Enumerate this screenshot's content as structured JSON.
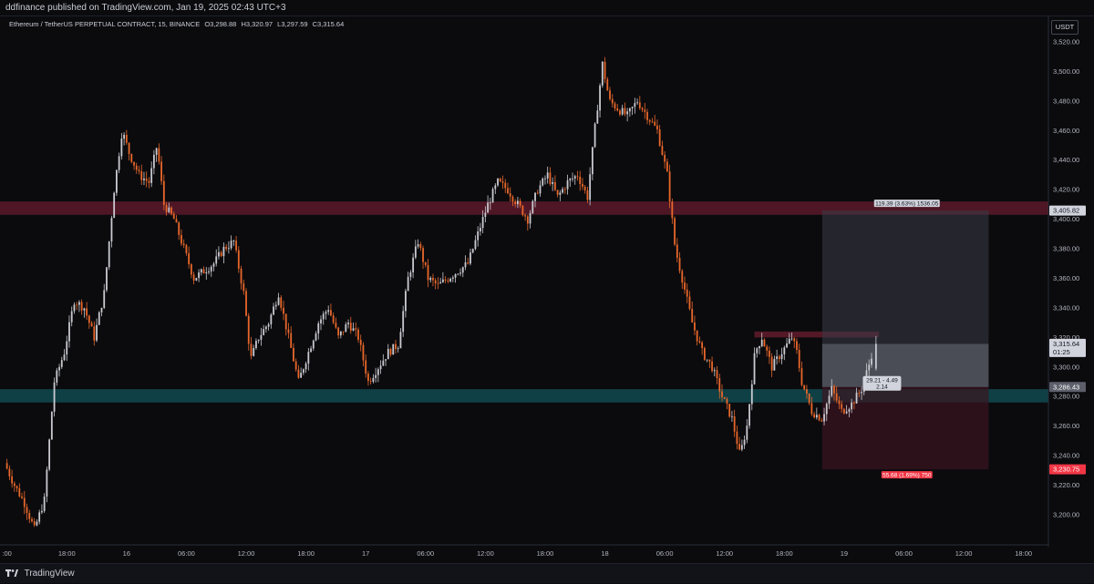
{
  "header": {
    "publisher": "ddfinance published on TradingView.com, Jan 19, 2025 02:43 UTC+3"
  },
  "legend": {
    "symbol": "Ethereum / TetherUS PERPETUAL CONTRACT, 15, BINANCE",
    "open": "O3,298.88",
    "high": "H3,320.97",
    "low": "L3,297.59",
    "close": "C3,315.64"
  },
  "currency_button": "USDT",
  "footer": {
    "brand": "TradingView"
  },
  "colors": {
    "background": "#0b0b0e",
    "candle_up": "#c9cad0",
    "candle_down": "#e8672a",
    "resistance_zone": "#5c1a2a",
    "support_zone": "#0f4a4f",
    "target_label": "#d1d4dc",
    "stop_label": "#f23645"
  },
  "chart_data": {
    "type": "candlestick",
    "y_range": [
      3180,
      3530
    ],
    "y_ticks": [
      "3,200.00",
      "3,220.00",
      "3,240.00",
      "3,260.00",
      "3,280.00",
      "3,300.00",
      "3,320.00",
      "3,340.00",
      "3,360.00",
      "3,380.00",
      "3,400.00",
      "3,420.00",
      "3,440.00",
      "3,460.00",
      "3,480.00",
      "3,500.00",
      "3,520.00"
    ],
    "y_tick_values": [
      3200,
      3220,
      3240,
      3260,
      3280,
      3300,
      3320,
      3340,
      3360,
      3380,
      3400,
      3420,
      3440,
      3460,
      3480,
      3500,
      3520
    ],
    "x_ticks": [
      {
        "label": ":00",
        "t": 0
      },
      {
        "label": "18:00",
        "t": 6
      },
      {
        "label": "16",
        "t": 12
      },
      {
        "label": "06:00",
        "t": 18
      },
      {
        "label": "12:00",
        "t": 24
      },
      {
        "label": "18:00",
        "t": 30
      },
      {
        "label": "17",
        "t": 36
      },
      {
        "label": "06:00",
        "t": 42
      },
      {
        "label": "12:00",
        "t": 48
      },
      {
        "label": "18:00",
        "t": 54
      },
      {
        "label": "18",
        "t": 60
      },
      {
        "label": "06:00",
        "t": 66
      },
      {
        "label": "12:00",
        "t": 72
      },
      {
        "label": "18:00",
        "t": 78
      },
      {
        "label": "19",
        "t": 84
      },
      {
        "label": "06:00",
        "t": 90
      },
      {
        "label": "12:00",
        "t": 96
      },
      {
        "label": "18:00",
        "t": 102
      }
    ],
    "x_range_hours": [
      -0.7,
      104.5
    ],
    "price_path": [
      [
        0,
        3235
      ],
      [
        1,
        3220
      ],
      [
        2,
        3208
      ],
      [
        3,
        3190
      ],
      [
        4,
        3210
      ],
      [
        5,
        3290
      ],
      [
        6,
        3310
      ],
      [
        7,
        3345
      ],
      [
        8,
        3340
      ],
      [
        9,
        3320
      ],
      [
        10,
        3350
      ],
      [
        11,
        3420
      ],
      [
        11.8,
        3460
      ],
      [
        12.5,
        3445
      ],
      [
        13.5,
        3430
      ],
      [
        14.5,
        3425
      ],
      [
        15.3,
        3450
      ],
      [
        16,
        3410
      ],
      [
        17,
        3400
      ],
      [
        18,
        3380
      ],
      [
        19,
        3360
      ],
      [
        20,
        3365
      ],
      [
        21,
        3370
      ],
      [
        22,
        3380
      ],
      [
        23,
        3385
      ],
      [
        24,
        3350
      ],
      [
        24.7,
        3305
      ],
      [
        25.5,
        3320
      ],
      [
        26.5,
        3330
      ],
      [
        27.5,
        3350
      ],
      [
        28.5,
        3320
      ],
      [
        29.5,
        3290
      ],
      [
        30.5,
        3310
      ],
      [
        31.5,
        3330
      ],
      [
        32.5,
        3340
      ],
      [
        33.5,
        3320
      ],
      [
        34.5,
        3330
      ],
      [
        35.5,
        3320
      ],
      [
        36.5,
        3290
      ],
      [
        37.5,
        3300
      ],
      [
        38.5,
        3310
      ],
      [
        39.5,
        3315
      ],
      [
        40.5,
        3360
      ],
      [
        41.5,
        3385
      ],
      [
        42.5,
        3360
      ],
      [
        43.5,
        3355
      ],
      [
        44.5,
        3360
      ],
      [
        45.5,
        3365
      ],
      [
        46.5,
        3370
      ],
      [
        47.5,
        3390
      ],
      [
        48.5,
        3410
      ],
      [
        49.5,
        3425
      ],
      [
        50.5,
        3420
      ],
      [
        51.5,
        3410
      ],
      [
        52.5,
        3400
      ],
      [
        53.5,
        3420
      ],
      [
        54.5,
        3430
      ],
      [
        55.5,
        3415
      ],
      [
        56.5,
        3425
      ],
      [
        57.5,
        3430
      ],
      [
        58.5,
        3415
      ],
      [
        59.3,
        3465
      ],
      [
        60,
        3505
      ],
      [
        60.7,
        3480
      ],
      [
        61.5,
        3475
      ],
      [
        62.5,
        3470
      ],
      [
        63.5,
        3480
      ],
      [
        64.5,
        3470
      ],
      [
        65.5,
        3460
      ],
      [
        66.5,
        3430
      ],
      [
        67.3,
        3380
      ],
      [
        68,
        3360
      ],
      [
        69,
        3330
      ],
      [
        70,
        3310
      ],
      [
        71,
        3300
      ],
      [
        72,
        3280
      ],
      [
        73,
        3265
      ],
      [
        73.8,
        3240
      ],
      [
        74.5,
        3260
      ],
      [
        75.3,
        3310
      ],
      [
        76,
        3320
      ],
      [
        77,
        3300
      ],
      [
        78,
        3310
      ],
      [
        79,
        3320
      ],
      [
        79.5,
        3310
      ],
      [
        80,
        3290
      ],
      [
        81,
        3270
      ],
      [
        82,
        3265
      ],
      [
        83,
        3285
      ],
      [
        84,
        3270
      ],
      [
        85,
        3275
      ],
      [
        86,
        3285
      ],
      [
        86.9,
        3305
      ],
      [
        87.2,
        3315.64
      ]
    ],
    "last_candle": {
      "open": 3298.88,
      "high": 3320.97,
      "low": 3297.59,
      "close": 3315.64
    },
    "zones": [
      {
        "name": "resistance",
        "from": 3403,
        "to": 3412,
        "color": "#5c1a2a"
      },
      {
        "name": "support",
        "from": 3276,
        "to": 3285,
        "color": "#0f4a4f"
      }
    ],
    "small_level": {
      "from": 3320,
      "to": 3324,
      "t_start": 75,
      "t_end": 87.5
    },
    "position": {
      "t_start": 81.8,
      "t_end": 98.5,
      "entry": 3286.43,
      "target": 3405.82,
      "stop": 3230.75,
      "target_label": "119.39 (3.63%) 1536.05",
      "stop_label": "55.68 (1.69%) 750",
      "mid_label_line1": "29.21 - 4.49",
      "mid_label_line2": "2.14"
    },
    "price_tags": {
      "target": "3,405.82",
      "current_price": "3,315.64",
      "current_time": "01:25",
      "entry": "3,286.43",
      "stop": "3,230.75"
    }
  }
}
